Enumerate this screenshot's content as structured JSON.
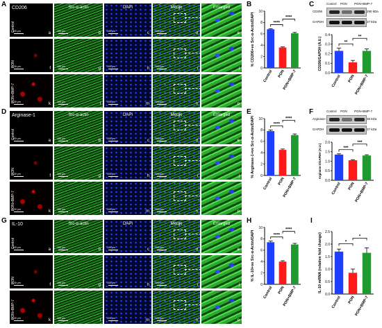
{
  "panels": {
    "A": {
      "letter": "A",
      "stain1": "CD206",
      "stain2": "Src-α-actin",
      "stain3": "DAPI",
      "stain4": "Merge",
      "stain5": "Enlarged"
    },
    "D": {
      "letter": "D",
      "stain1": "Arginase-1",
      "stain2": "Src-α-actin",
      "stain3": "DAPI",
      "stain4": "Merge",
      "stain5": "Enlarged"
    },
    "G": {
      "letter": "G",
      "stain1": "IL-10",
      "stain2": "Src-α-actin",
      "stain3": "DAPI",
      "stain4": "Merge",
      "stain5": "Enlarged"
    }
  },
  "rows": [
    "Control",
    "PON",
    "PON+BMP-7"
  ],
  "tile_letters": [
    [
      "a",
      "b",
      "c",
      "d",
      "e"
    ],
    [
      "f",
      "g",
      "h",
      "i",
      "j"
    ],
    [
      "k",
      "l",
      "m",
      "n",
      "o"
    ]
  ],
  "scale_text": "100 μm",
  "colors": {
    "blue": "#1f3fff",
    "red": "#ff1a1a",
    "green": "#1f9a2e",
    "nucleus": "#2438ff",
    "actin": "#3bd13b"
  },
  "western": {
    "C": {
      "letter": "C",
      "header": [
        "Control",
        "PON",
        "PON+BMP-7"
      ],
      "protein": "CD206",
      "kda": "290 kDa",
      "loading": "GAPDH",
      "loading_kda": "37 kDa"
    },
    "F": {
      "letter": "F",
      "header": [
        "Control",
        "PON",
        "PON+BMP-7"
      ],
      "protein": "Arginase-1",
      "kda": "35 kDa",
      "loading": "GAPDH",
      "loading_kda": "37 kDa"
    }
  },
  "chart_data": [
    {
      "id": "B",
      "type": "bar",
      "categories": [
        "Control",
        "PON",
        "PON+BMP-7"
      ],
      "values": [
        6.8,
        3.6,
        6.1
      ],
      "errors": [
        0.1,
        0.1,
        0.15
      ],
      "ylabel": "% CD206+ve Src-α-Actin/DAPI",
      "ylim": [
        0,
        10
      ],
      "yticks": [
        0,
        2,
        4,
        6,
        8,
        10
      ],
      "sig": [
        "****",
        "****"
      ]
    },
    {
      "id": "C-quant",
      "type": "bar",
      "categories": [
        "Control",
        "PON",
        "PON+BMP-7"
      ],
      "values": [
        0.23,
        0.11,
        0.23
      ],
      "errors": [
        0.03,
        0.02,
        0.02
      ],
      "ylabel": "CD206/GAPDH (A.U.)",
      "ylim": [
        0,
        0.4
      ],
      "yticks": [
        0.0,
        0.1,
        0.2,
        0.3,
        0.4
      ],
      "sig": [
        "**",
        "**"
      ]
    },
    {
      "id": "E",
      "type": "bar",
      "categories": [
        "Control",
        "PON",
        "PON+BMP-7"
      ],
      "values": [
        7.8,
        4.5,
        7.1
      ],
      "errors": [
        0.2,
        0.15,
        0.2
      ],
      "ylabel": "% Arginase-1+ve Src-α-Actin/DAPI",
      "ylim": [
        0,
        10
      ],
      "yticks": [
        0,
        2,
        4,
        6,
        8,
        10
      ],
      "sig": [
        "****",
        "****"
      ]
    },
    {
      "id": "F-quant",
      "type": "bar",
      "categories": [
        "Control",
        "PON",
        "PON+BMP-7"
      ],
      "values": [
        1.35,
        1.05,
        1.3
      ],
      "errors": [
        0.04,
        0.03,
        0.04
      ],
      "ylabel": "Arginase-1/GAPDH (A.U.)",
      "ylim": [
        0,
        2.0
      ],
      "yticks": [
        0.0,
        0.5,
        1.0,
        1.5,
        2.0
      ],
      "sig": [
        "***",
        "***"
      ]
    },
    {
      "id": "H",
      "type": "bar",
      "categories": [
        "Control",
        "PON",
        "PON+BMP-7"
      ],
      "values": [
        7.4,
        4.0,
        7.0
      ],
      "errors": [
        0.2,
        0.15,
        0.2
      ],
      "ylabel": "% IL-10+ve Src-α-Actin/DAPI",
      "ylim": [
        0,
        10
      ],
      "yticks": [
        0,
        2,
        4,
        6,
        8,
        10
      ],
      "sig": [
        "****",
        "****"
      ]
    },
    {
      "id": "I",
      "type": "bar",
      "categories": [
        "Control",
        "PON",
        "PON+BMP-7"
      ],
      "values": [
        1.7,
        0.85,
        1.65
      ],
      "errors": [
        0.1,
        0.15,
        0.2
      ],
      "ylabel": "IL-10 mRNA (relative fold change)",
      "ylim": [
        0,
        2.5
      ],
      "yticks": [
        0.0,
        0.5,
        1.0,
        1.5,
        2.0,
        2.5
      ],
      "sig": [
        "*",
        "*"
      ]
    }
  ],
  "labels": {
    "B": "B",
    "E": "E",
    "H": "H",
    "I": "I"
  }
}
